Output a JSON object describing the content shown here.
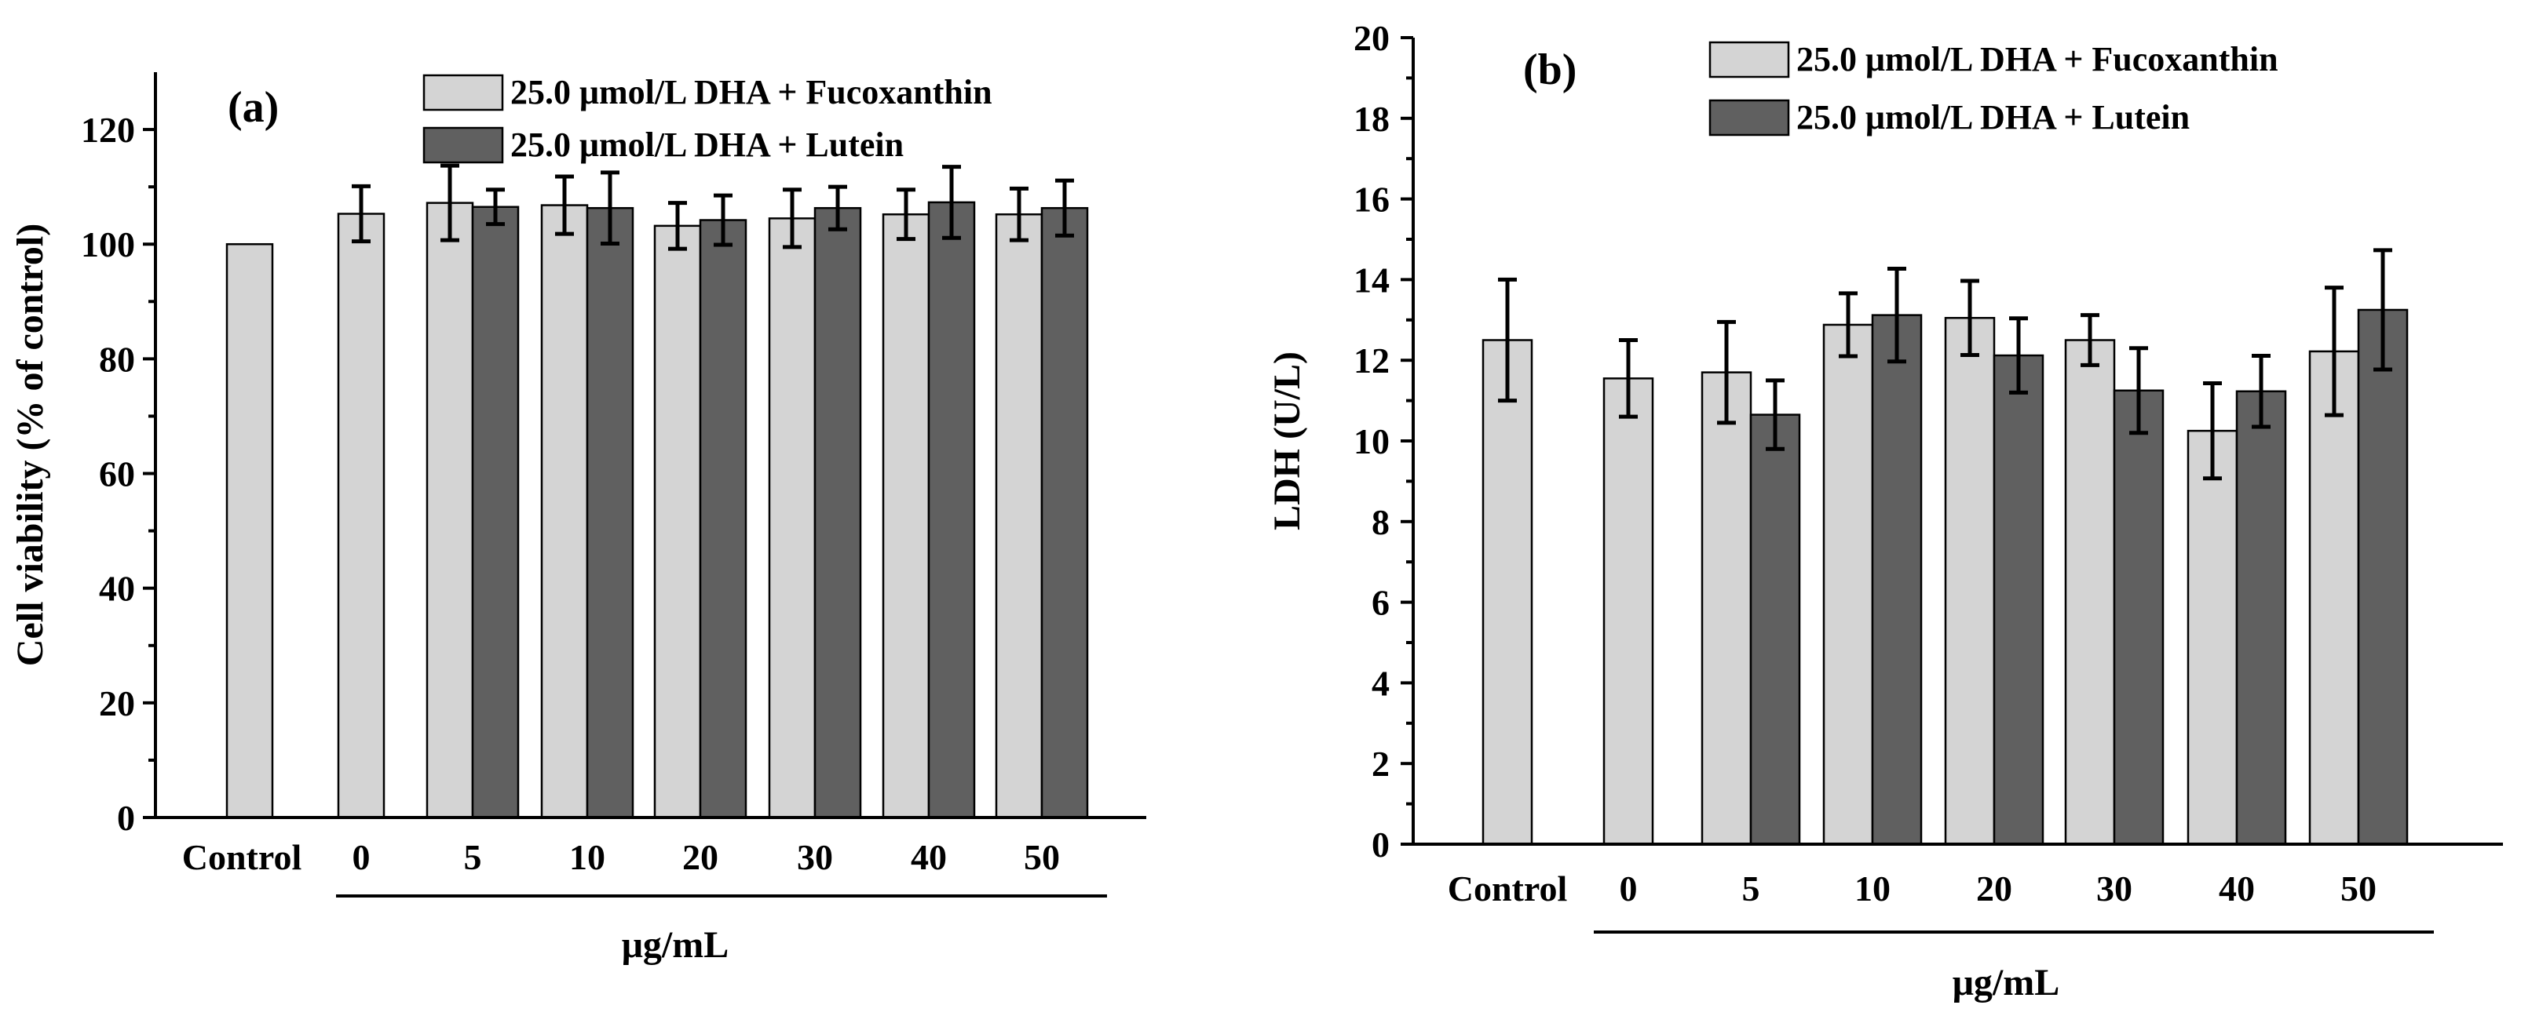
{
  "chart_data": [
    {
      "type": "bar",
      "panel_label": "(a)",
      "ylabel": "Cell viability (% of control)",
      "xlabel": "μg/mL",
      "ylim": [
        0,
        130
      ],
      "yticks": [
        0,
        20,
        40,
        60,
        80,
        100,
        120
      ],
      "categories": [
        "Control",
        "0",
        "5",
        "10",
        "20",
        "30",
        "40",
        "50"
      ],
      "legend_position": "top-right",
      "series": [
        {
          "name": "25.0 μmol/L DHA + Fucoxanthin",
          "color": "#d4d4d4",
          "values": [
            100,
            105.3,
            107.2,
            106.8,
            103.2,
            104.5,
            105.2,
            105.2
          ],
          "errors": [
            0,
            4.8,
            6.5,
            5.0,
            4.0,
            5.0,
            4.3,
            4.5
          ]
        },
        {
          "name": "25.0 μmol/L DHA + Lutein",
          "color": "#606060",
          "values": [
            null,
            null,
            106.5,
            106.3,
            104.2,
            106.3,
            107.3,
            106.3
          ],
          "errors": [
            null,
            null,
            3.0,
            6.2,
            4.3,
            3.7,
            6.2,
            4.8
          ]
        }
      ]
    },
    {
      "type": "bar",
      "panel_label": "(b)",
      "ylabel": "LDH (U/L)",
      "xlabel": "μg/mL",
      "ylim": [
        0,
        20
      ],
      "yticks": [
        0,
        2,
        4,
        6,
        8,
        10,
        12,
        14,
        16,
        18,
        20
      ],
      "categories": [
        "Control",
        "0",
        "5",
        "10",
        "20",
        "30",
        "40",
        "50"
      ],
      "legend_position": "top-right",
      "series": [
        {
          "name": "25.0 μmol/L DHA + Fucoxanthin",
          "color": "#d4d4d4",
          "values": [
            12.5,
            11.55,
            11.7,
            12.88,
            13.05,
            12.5,
            10.25,
            12.22
          ],
          "errors": [
            1.5,
            0.95,
            1.25,
            0.78,
            0.92,
            0.62,
            1.18,
            1.58
          ]
        },
        {
          "name": "25.0 μmol/L DHA + Lutein",
          "color": "#606060",
          "values": [
            null,
            null,
            10.65,
            13.12,
            12.12,
            11.25,
            11.23,
            13.25
          ],
          "errors": [
            null,
            null,
            0.85,
            1.15,
            0.92,
            1.05,
            0.88,
            1.48
          ]
        }
      ]
    }
  ]
}
